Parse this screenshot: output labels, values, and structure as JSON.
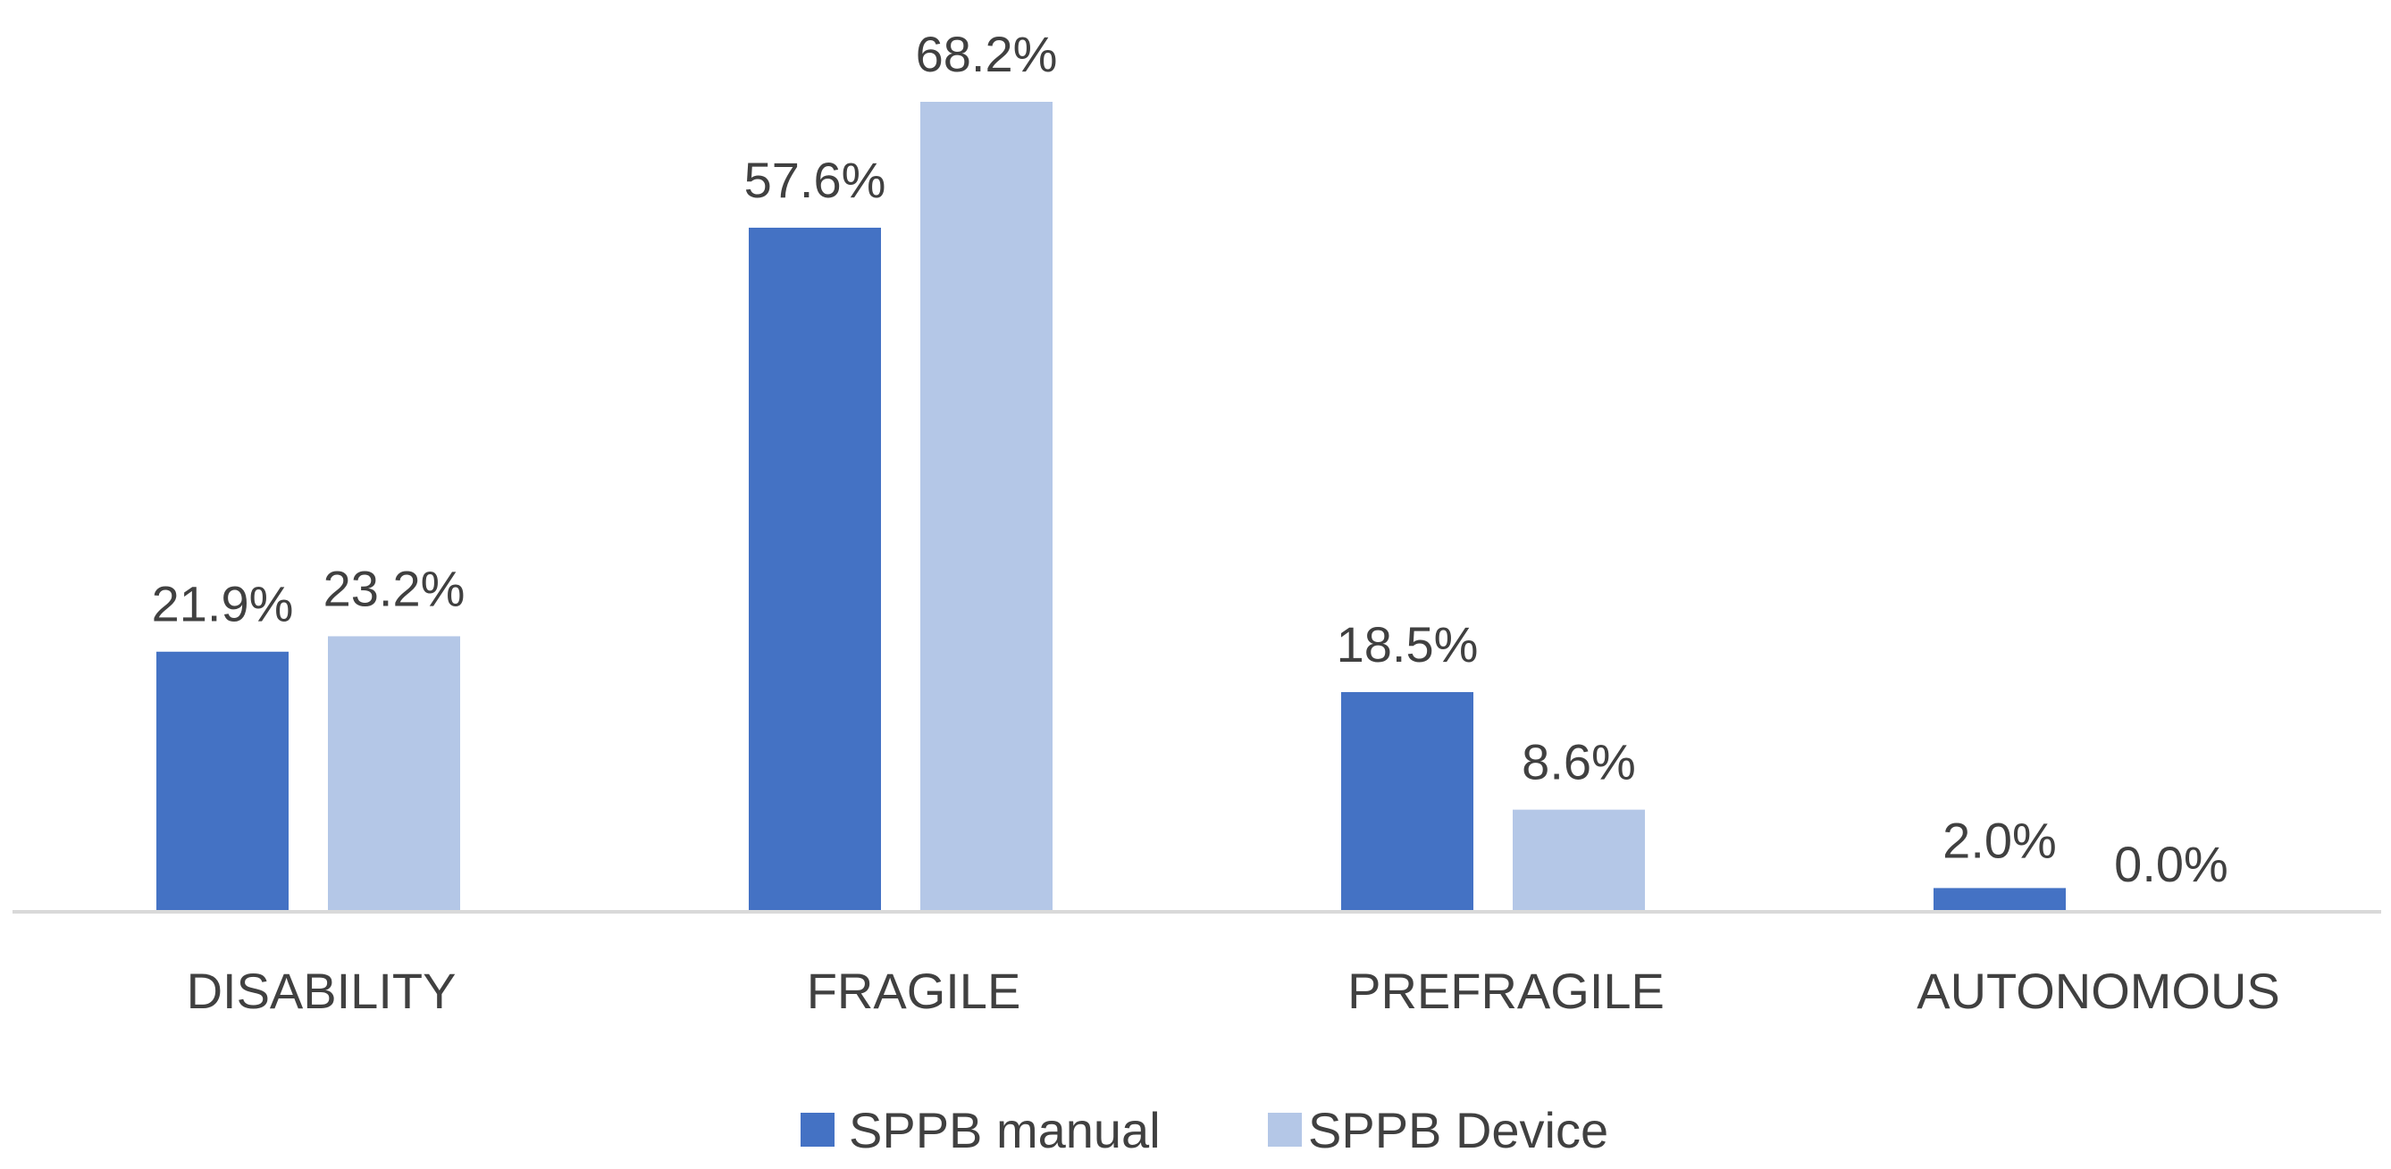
{
  "chart_data": {
    "type": "bar",
    "categories": [
      "DISABILITY",
      "FRAGILE",
      "PREFRAGILE",
      "AUTONOMOUS"
    ],
    "series": [
      {
        "name": "SPPB manual",
        "values": [
          21.9,
          57.6,
          18.5,
          2.0
        ],
        "labels": [
          "21.9%",
          "57.6%",
          "18.5%",
          "2.0%"
        ],
        "color": "#4472C4"
      },
      {
        "name": "SPPB Device",
        "values": [
          23.2,
          68.2,
          8.6,
          0.0
        ],
        "labels": [
          "23.2%",
          "68.2%",
          "8.6%",
          "0.0%"
        ],
        "color": "#B4C7E7"
      }
    ],
    "value_unit": "%",
    "ylim": [
      0,
      68.2
    ],
    "grid": false,
    "y_axis_visible": false,
    "legend_position": "bottom"
  }
}
